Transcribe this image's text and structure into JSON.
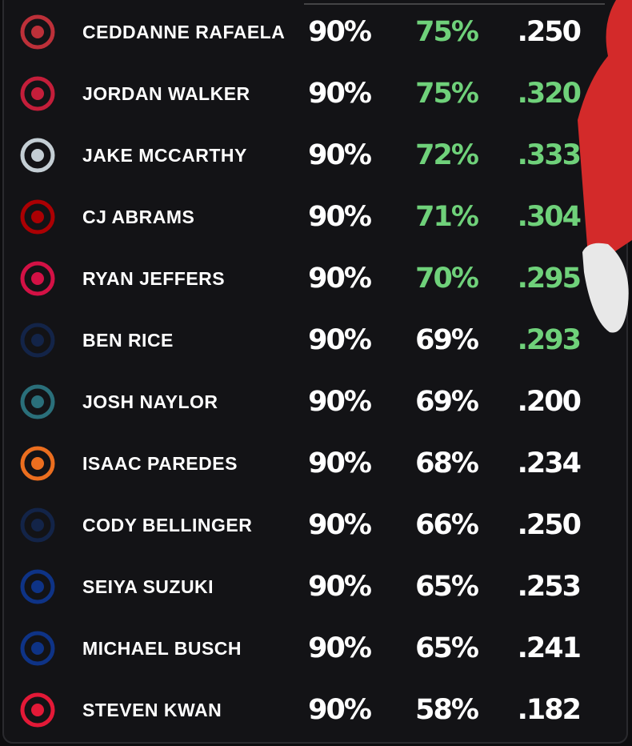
{
  "table": {
    "rows": [
      {
        "name": "CEDDANNE RAFAELA",
        "logo_color": "#bd3039",
        "stats": [
          {
            "text": "90%",
            "color": "#ffffff"
          },
          {
            "text": "75%",
            "color": "#6fd17a"
          },
          {
            "text": ".250",
            "color": "#ffffff"
          }
        ]
      },
      {
        "name": "JORDAN WALKER",
        "logo_color": "#c41e3a",
        "stats": [
          {
            "text": "90%",
            "color": "#ffffff"
          },
          {
            "text": "75%",
            "color": "#6fd17a"
          },
          {
            "text": ".320",
            "color": "#6fd17a"
          }
        ]
      },
      {
        "name": "JAKE MCCARTHY",
        "logo_color": "#c4ced4",
        "stats": [
          {
            "text": "90%",
            "color": "#ffffff"
          },
          {
            "text": "72%",
            "color": "#6fd17a"
          },
          {
            "text": ".333",
            "color": "#6fd17a"
          }
        ]
      },
      {
        "name": "CJ ABRAMS",
        "logo_color": "#ab0003",
        "stats": [
          {
            "text": "90%",
            "color": "#ffffff"
          },
          {
            "text": "71%",
            "color": "#6fd17a"
          },
          {
            "text": ".304",
            "color": "#6fd17a"
          }
        ]
      },
      {
        "name": "RYAN JEFFERS",
        "logo_color": "#d31145",
        "stats": [
          {
            "text": "90%",
            "color": "#ffffff"
          },
          {
            "text": "70%",
            "color": "#6fd17a"
          },
          {
            "text": ".295",
            "color": "#6fd17a"
          }
        ]
      },
      {
        "name": "BEN RICE",
        "logo_color": "#132448",
        "stats": [
          {
            "text": "90%",
            "color": "#ffffff"
          },
          {
            "text": "69%",
            "color": "#ffffff"
          },
          {
            "text": ".293",
            "color": "#6fd17a"
          }
        ]
      },
      {
        "name": "JOSH NAYLOR",
        "logo_color": "#2a6f7a",
        "stats": [
          {
            "text": "90%",
            "color": "#ffffff"
          },
          {
            "text": "69%",
            "color": "#ffffff"
          },
          {
            "text": ".200",
            "color": "#ffffff"
          }
        ]
      },
      {
        "name": "ISAAC PAREDES",
        "logo_color": "#eb6e1f",
        "stats": [
          {
            "text": "90%",
            "color": "#ffffff"
          },
          {
            "text": "68%",
            "color": "#ffffff"
          },
          {
            "text": ".234",
            "color": "#ffffff"
          }
        ]
      },
      {
        "name": "CODY BELLINGER",
        "logo_color": "#132448",
        "stats": [
          {
            "text": "90%",
            "color": "#ffffff"
          },
          {
            "text": "66%",
            "color": "#ffffff"
          },
          {
            "text": ".250",
            "color": "#ffffff"
          }
        ]
      },
      {
        "name": "SEIYA SUZUKI",
        "logo_color": "#0e3386",
        "stats": [
          {
            "text": "90%",
            "color": "#ffffff"
          },
          {
            "text": "65%",
            "color": "#ffffff"
          },
          {
            "text": ".253",
            "color": "#ffffff"
          }
        ]
      },
      {
        "name": "MICHAEL BUSCH",
        "logo_color": "#0e3386",
        "stats": [
          {
            "text": "90%",
            "color": "#ffffff"
          },
          {
            "text": "65%",
            "color": "#ffffff"
          },
          {
            "text": ".241",
            "color": "#ffffff"
          }
        ]
      },
      {
        "name": "STEVEN KWAN",
        "logo_color": "#e31937",
        "stats": [
          {
            "text": "90%",
            "color": "#ffffff"
          },
          {
            "text": "58%",
            "color": "#ffffff"
          },
          {
            "text": ".182",
            "color": "#ffffff"
          }
        ]
      }
    ]
  }
}
